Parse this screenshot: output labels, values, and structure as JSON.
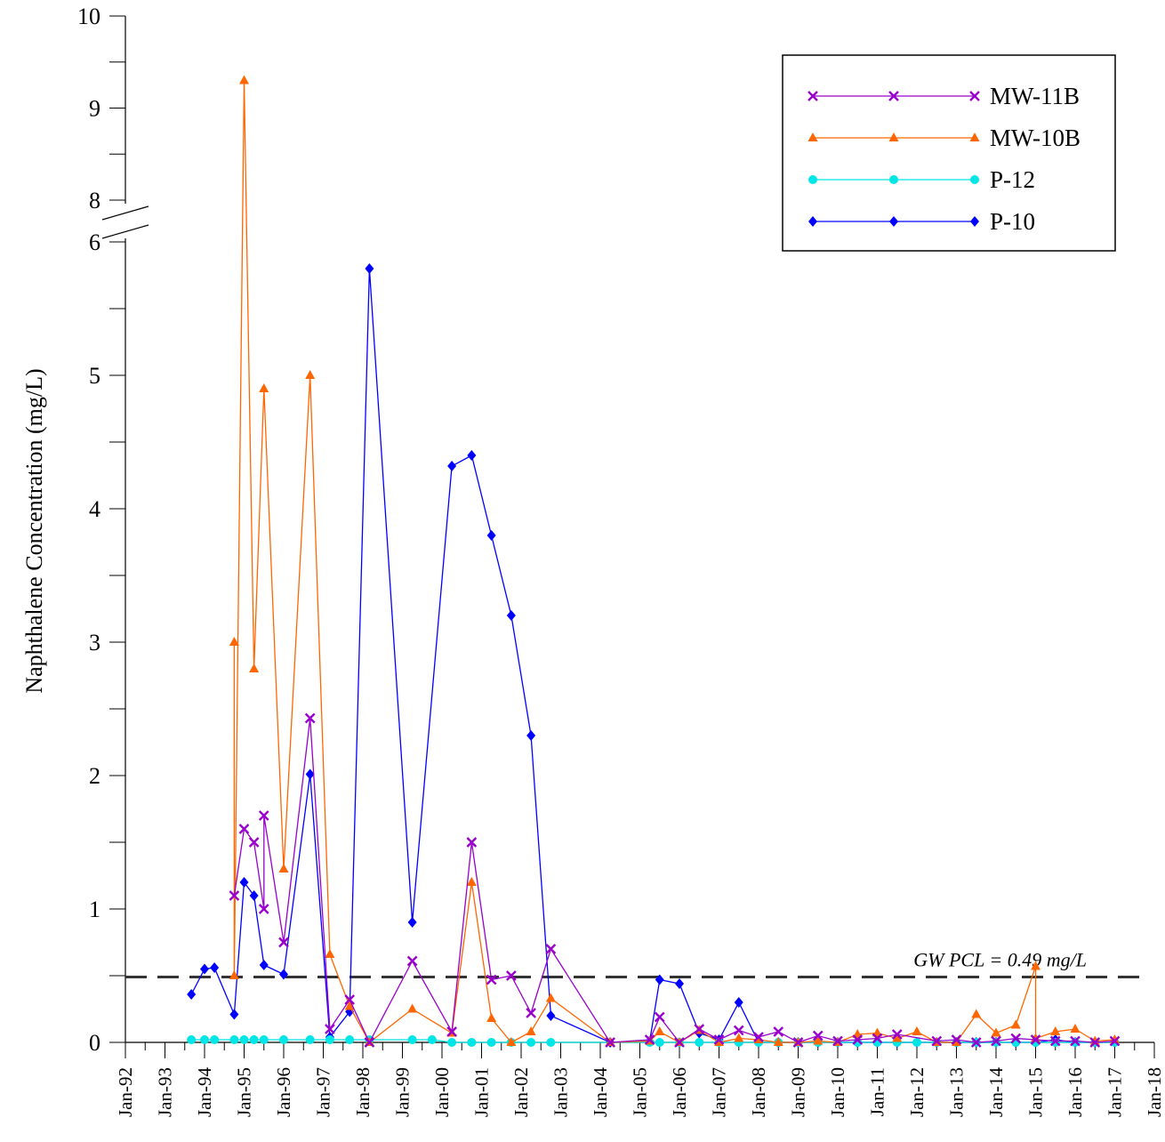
{
  "chart_data": {
    "type": "line",
    "title": "",
    "xlabel": "",
    "ylabel": "Naphthalene Concentration (mg/L)",
    "y_axis": {
      "lower_segment_range": [
        0,
        6
      ],
      "upper_segment_range": [
        8,
        10
      ],
      "axis_break_between": [
        6,
        8
      ],
      "tick_labels": [
        "0",
        "1",
        "2",
        "3",
        "4",
        "5",
        "6",
        "8",
        "9",
        "10"
      ]
    },
    "x_axis": {
      "range": [
        "1992-01",
        "2018-01"
      ],
      "tick_labels": [
        "Jan-92",
        "Jan-93",
        "Jan-94",
        "Jan-95",
        "Jan-96",
        "Jan-97",
        "Jan-98",
        "Jan-99",
        "Jan-00",
        "Jan-01",
        "Jan-02",
        "Jan-03",
        "Jan-04",
        "Jan-05",
        "Jan-06",
        "Jan-07",
        "Jan-08",
        "Jan-09",
        "Jan-10",
        "Jan-11",
        "Jan-12",
        "Jan-13",
        "Jan-14",
        "Jan-15",
        "Jan-16",
        "Jan-17",
        "Jan-18"
      ]
    },
    "legend_position": "top-right",
    "grid": false,
    "reference_line": {
      "label": "GW PCL = 0.49 mg/L",
      "value": 0.49,
      "style": "dashed",
      "color": "#333333"
    },
    "series": [
      {
        "name": "MW-11B",
        "color": "#9900cc",
        "marker": "x",
        "points": [
          [
            "1994-10",
            1.1
          ],
          [
            "1995-01",
            1.6
          ],
          [
            "1995-04",
            1.5
          ],
          [
            "1995-07",
            1.0
          ],
          [
            "1995-07",
            1.7
          ],
          [
            "1996-01",
            0.75
          ],
          [
            "1996-09",
            2.43
          ],
          [
            "1997-03",
            0.1
          ],
          [
            "1997-09",
            0.32
          ],
          [
            "1998-03",
            0.0
          ],
          [
            "1999-04",
            0.61
          ],
          [
            "2000-04",
            0.08
          ],
          [
            "2000-10",
            1.5
          ],
          [
            "2001-04",
            0.47
          ],
          [
            "2001-10",
            0.5
          ],
          [
            "2002-04",
            0.22
          ],
          [
            "2002-10",
            0.7
          ],
          [
            "2004-04",
            0.0
          ],
          [
            "2005-04",
            0.02
          ],
          [
            "2005-07",
            0.19
          ],
          [
            "2006-01",
            0.0
          ],
          [
            "2006-07",
            0.1
          ],
          [
            "2007-01",
            0.02
          ],
          [
            "2007-07",
            0.09
          ],
          [
            "2008-01",
            0.04
          ],
          [
            "2008-07",
            0.08
          ],
          [
            "2009-01",
            0.0
          ],
          [
            "2009-07",
            0.05
          ],
          [
            "2010-01",
            0.01
          ],
          [
            "2010-07",
            0.02
          ],
          [
            "2011-01",
            0.03
          ],
          [
            "2011-07",
            0.06
          ],
          [
            "2012-07",
            0.01
          ],
          [
            "2013-01",
            0.02
          ],
          [
            "2013-07",
            0.0
          ],
          [
            "2014-01",
            0.01
          ],
          [
            "2014-07",
            0.03
          ],
          [
            "2015-01",
            0.02
          ],
          [
            "2015-07",
            0.01
          ],
          [
            "2016-01",
            0.01
          ],
          [
            "2016-07",
            0.0
          ],
          [
            "2017-01",
            0.01
          ]
        ]
      },
      {
        "name": "MW-10B",
        "color": "#ff6600",
        "marker": "triangle",
        "points": [
          [
            "1994-10",
            3.0
          ],
          [
            "1994-10",
            0.5
          ],
          [
            "1995-01",
            9.3
          ],
          [
            "1995-04",
            2.8
          ],
          [
            "1995-07",
            4.9
          ],
          [
            "1996-01",
            1.3
          ],
          [
            "1996-09",
            5.0
          ],
          [
            "1997-03",
            0.66
          ],
          [
            "1997-09",
            0.27
          ],
          [
            "1998-03",
            0.0
          ],
          [
            "1999-04",
            0.25
          ],
          [
            "2000-04",
            0.07
          ],
          [
            "2000-10",
            1.2
          ],
          [
            "2001-04",
            0.18
          ],
          [
            "2001-10",
            0.0
          ],
          [
            "2002-04",
            0.08
          ],
          [
            "2002-10",
            0.33
          ],
          [
            "2004-04",
            0.0
          ],
          [
            "2005-04",
            0.01
          ],
          [
            "2005-07",
            0.08
          ],
          [
            "2006-01",
            0.0
          ],
          [
            "2006-07",
            0.09
          ],
          [
            "2007-01",
            0.0
          ],
          [
            "2007-07",
            0.03
          ],
          [
            "2008-01",
            0.02
          ],
          [
            "2008-07",
            0.0
          ],
          [
            "2009-01",
            0.0
          ],
          [
            "2009-07",
            0.01
          ],
          [
            "2010-01",
            0.0
          ],
          [
            "2010-07",
            0.06
          ],
          [
            "2011-01",
            0.07
          ],
          [
            "2011-07",
            0.03
          ],
          [
            "2012-01",
            0.08
          ],
          [
            "2012-07",
            0.0
          ],
          [
            "2013-01",
            0.0
          ],
          [
            "2013-07",
            0.21
          ],
          [
            "2014-01",
            0.07
          ],
          [
            "2014-07",
            0.13
          ],
          [
            "2015-01",
            0.57
          ],
          [
            "2015-01",
            0.03
          ],
          [
            "2015-07",
            0.08
          ],
          [
            "2016-01",
            0.1
          ],
          [
            "2016-07",
            0.01
          ],
          [
            "2017-01",
            0.02
          ]
        ]
      },
      {
        "name": "P-12",
        "color": "#00e5e5",
        "marker": "circle",
        "points": [
          [
            "1993-09",
            0.02
          ],
          [
            "1994-01",
            0.02
          ],
          [
            "1994-04",
            0.02
          ],
          [
            "1994-10",
            0.02
          ],
          [
            "1995-01",
            0.02
          ],
          [
            "1995-04",
            0.02
          ],
          [
            "1995-07",
            0.02
          ],
          [
            "1996-01",
            0.02
          ],
          [
            "1996-09",
            0.02
          ],
          [
            "1997-03",
            0.02
          ],
          [
            "1997-09",
            0.02
          ],
          [
            "1998-03",
            0.02
          ],
          [
            "1999-04",
            0.02
          ],
          [
            "1999-10",
            0.02
          ],
          [
            "2000-04",
            0.0
          ],
          [
            "2000-10",
            0.0
          ],
          [
            "2001-04",
            0.0
          ],
          [
            "2001-10",
            0.0
          ],
          [
            "2002-04",
            0.0
          ],
          [
            "2002-10",
            0.0
          ],
          [
            "2005-04",
            0.0
          ],
          [
            "2005-07",
            0.0
          ],
          [
            "2006-01",
            0.0
          ],
          [
            "2006-07",
            0.0
          ],
          [
            "2007-01",
            0.0
          ],
          [
            "2007-07",
            0.0
          ],
          [
            "2008-01",
            0.0
          ],
          [
            "2008-07",
            0.0
          ],
          [
            "2009-01",
            0.0
          ],
          [
            "2009-07",
            0.0
          ],
          [
            "2010-01",
            0.0
          ],
          [
            "2010-07",
            0.0
          ],
          [
            "2011-01",
            0.0
          ],
          [
            "2011-07",
            0.0
          ],
          [
            "2012-01",
            0.0
          ],
          [
            "2012-07",
            0.0
          ],
          [
            "2013-01",
            0.0
          ],
          [
            "2013-07",
            0.0
          ],
          [
            "2014-01",
            0.0
          ],
          [
            "2014-07",
            0.0
          ],
          [
            "2015-01",
            0.0
          ],
          [
            "2015-07",
            0.0
          ],
          [
            "2016-01",
            0.0
          ],
          [
            "2016-07",
            0.0
          ],
          [
            "2017-01",
            0.0
          ]
        ]
      },
      {
        "name": "P-10",
        "color": "#0000ff",
        "marker": "diamond",
        "points": [
          [
            "1993-09",
            0.36
          ],
          [
            "1994-01",
            0.55
          ],
          [
            "1994-04",
            0.56
          ],
          [
            "1994-10",
            0.21
          ],
          [
            "1995-01",
            1.2
          ],
          [
            "1995-04",
            1.1
          ],
          [
            "1995-07",
            0.58
          ],
          [
            "1996-01",
            0.51
          ],
          [
            "1996-09",
            2.01
          ],
          [
            "1997-03",
            0.04
          ],
          [
            "1997-09",
            0.23
          ],
          [
            "1998-03",
            5.8
          ],
          [
            "1999-04",
            0.9
          ],
          [
            "2000-04",
            4.32
          ],
          [
            "2000-10",
            4.4
          ],
          [
            "2001-04",
            3.8
          ],
          [
            "2001-10",
            3.2
          ],
          [
            "2002-04",
            2.3
          ],
          [
            "2002-10",
            0.2
          ],
          [
            "2004-04",
            0.0
          ],
          [
            "2005-04",
            0.01
          ],
          [
            "2005-07",
            0.47
          ],
          [
            "2006-01",
            0.44
          ],
          [
            "2006-07",
            0.07
          ],
          [
            "2007-01",
            0.02
          ],
          [
            "2007-07",
            0.3
          ],
          [
            "2008-01",
            0.0
          ],
          [
            "2008-07",
            0.0
          ],
          [
            "2009-01",
            0.0
          ],
          [
            "2009-07",
            0.0
          ],
          [
            "2010-01",
            0.0
          ],
          [
            "2010-07",
            0.0
          ],
          [
            "2011-01",
            0.0
          ],
          [
            "2011-07",
            0.0
          ],
          [
            "2012-01",
            0.0
          ],
          [
            "2012-07",
            0.0
          ],
          [
            "2013-01",
            0.0
          ],
          [
            "2013-07",
            0.0
          ],
          [
            "2014-01",
            0.0
          ],
          [
            "2014-07",
            0.0
          ],
          [
            "2015-01",
            0.0
          ],
          [
            "2015-07",
            0.02
          ],
          [
            "2016-01",
            0.0
          ],
          [
            "2016-07",
            0.0
          ],
          [
            "2017-01",
            0.0
          ]
        ]
      }
    ]
  }
}
